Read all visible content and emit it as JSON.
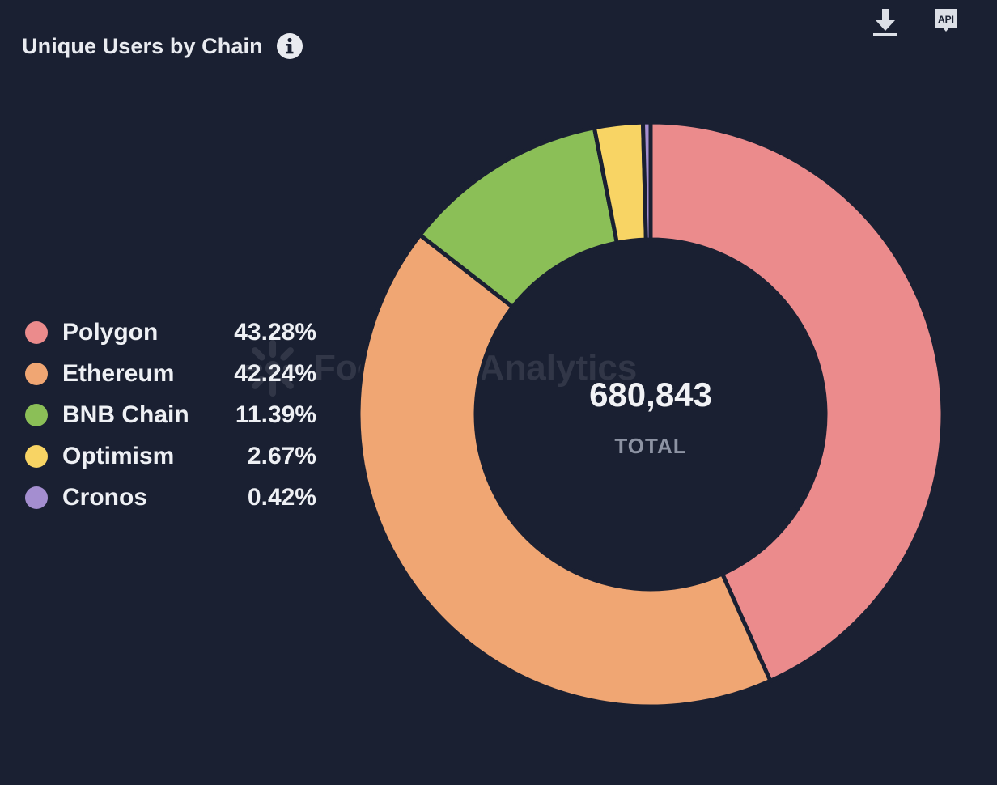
{
  "header": {
    "title": "Unique Users by Chain"
  },
  "icons": {
    "info": "info-icon",
    "download": "download-icon",
    "api": "api-icon"
  },
  "toolbar": {
    "api_label": "API"
  },
  "watermark": {
    "text": "Footprint Analytics"
  },
  "chart_data": {
    "type": "pie",
    "donut": true,
    "categories": [
      "Polygon",
      "Ethereum",
      "BNB Chain",
      "Optimism",
      "Cronos"
    ],
    "values": [
      43.28,
      42.24,
      11.39,
      2.67,
      0.42
    ],
    "value_labels": [
      "43.28%",
      "42.24%",
      "11.39%",
      "2.67%",
      "0.42%"
    ],
    "colors": [
      "#eb8b8c",
      "#f0a673",
      "#8bbf57",
      "#f8d464",
      "#a48ed0"
    ],
    "total": "680,843",
    "total_label": "TOTAL",
    "title": "Unique Users by Chain",
    "legend_position": "left"
  },
  "legend": {
    "items": [
      {
        "label": "Polygon",
        "value": "43.28%",
        "color": "#eb8b8c"
      },
      {
        "label": "Ethereum",
        "value": "42.24%",
        "color": "#f0a673"
      },
      {
        "label": "BNB Chain",
        "value": "11.39%",
        "color": "#8bbf57"
      },
      {
        "label": "Optimism",
        "value": "2.67%",
        "color": "#f8d464"
      },
      {
        "label": "Cronos",
        "value": "0.42%",
        "color": "#a48ed0"
      }
    ]
  },
  "colors": {
    "background": "#1a2032"
  }
}
